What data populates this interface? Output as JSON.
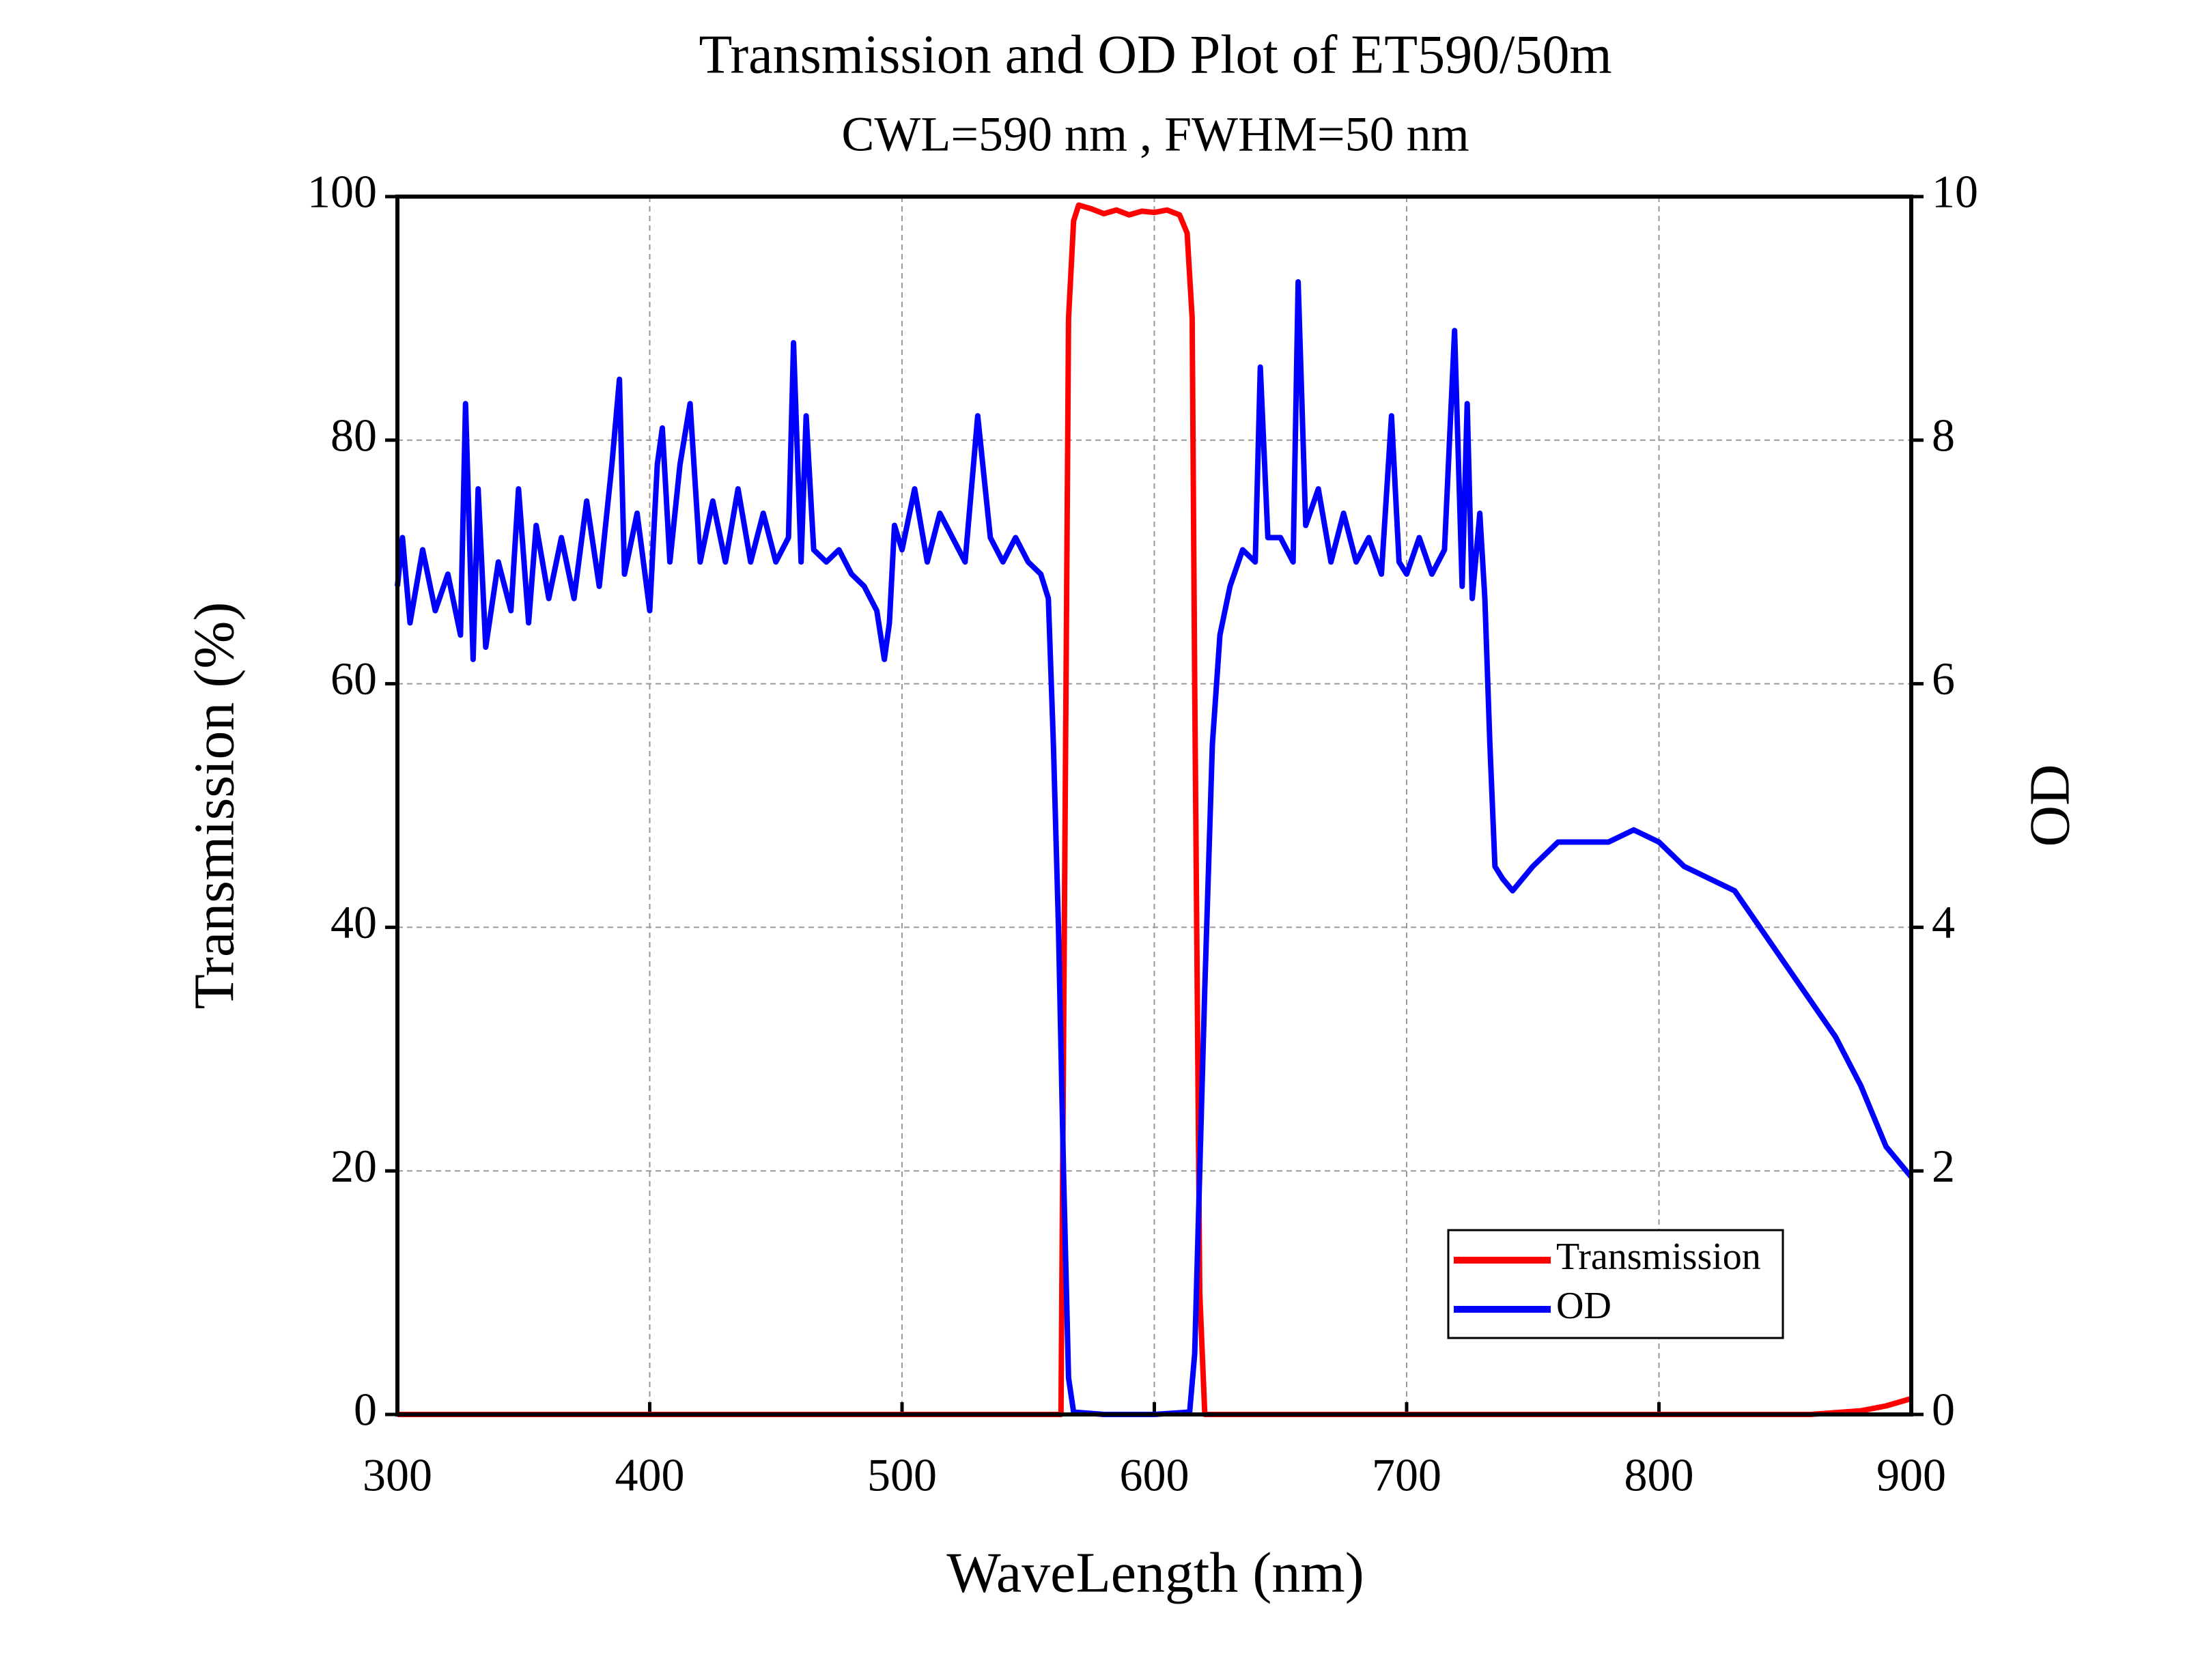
{
  "chart_data": {
    "type": "line",
    "title": "Transmission and OD Plot of ET590/50m",
    "subtitle": "CWL=590 nm , FWHM=50 nm",
    "x_label": "WaveLength (nm)",
    "y_label": "Transmission (%)",
    "y2_label": "OD",
    "xlim": [
      300,
      900
    ],
    "xticks": [
      300,
      400,
      500,
      600,
      700,
      800,
      900
    ],
    "ylim": [
      0,
      100
    ],
    "yticks": [
      0,
      20,
      40,
      60,
      80,
      100
    ],
    "y2lim": [
      0,
      10
    ],
    "y2ticks": [
      0,
      2,
      4,
      6,
      8,
      10
    ],
    "grid": true,
    "legend": "bottom-right",
    "series": [
      {
        "name": "Transmission",
        "color": "#ff0000",
        "x": [
          300,
          400,
          500,
          560,
          563,
          566,
          568,
          570,
          575,
          580,
          585,
          590,
          595,
          600,
          605,
          610,
          613,
          615,
          616,
          618,
          620,
          700,
          800,
          860,
          880,
          890,
          900
        ],
        "values": [
          0,
          0,
          0,
          0,
          0,
          90,
          98,
          99.3,
          99,
          98.6,
          98.9,
          98.5,
          98.8,
          98.7,
          98.9,
          98.5,
          97,
          90,
          60,
          10,
          0,
          0,
          0,
          0,
          0.3,
          0.7,
          1.3
        ]
      },
      {
        "name": "OD",
        "color": "#0000ff",
        "axis": "y2",
        "x": [
          300,
          302,
          305,
          310,
          315,
          320,
          325,
          327,
          330,
          332,
          335,
          340,
          345,
          348,
          352,
          355,
          360,
          365,
          370,
          375,
          380,
          385,
          388,
          390,
          395,
          400,
          403,
          405,
          408,
          412,
          416,
          420,
          425,
          430,
          435,
          440,
          445,
          450,
          455,
          457,
          460,
          462,
          465,
          470,
          475,
          480,
          485,
          490,
          493,
          495,
          497,
          500,
          505,
          510,
          515,
          520,
          525,
          530,
          535,
          540,
          545,
          550,
          555,
          558,
          560,
          562,
          564,
          566,
          568,
          580,
          600,
          614,
          616,
          618,
          620,
          623,
          626,
          630,
          635,
          640,
          642,
          645,
          650,
          655,
          657,
          660,
          665,
          670,
          675,
          680,
          685,
          690,
          694,
          697,
          700,
          705,
          710,
          715,
          719,
          722,
          724,
          726,
          729,
          731,
          733,
          735,
          738,
          742,
          750,
          760,
          770,
          780,
          790,
          800,
          810,
          820,
          830,
          840,
          850,
          860,
          870,
          880,
          890,
          900
        ],
        "values": [
          6.8,
          7.2,
          6.5,
          7.1,
          6.6,
          6.9,
          6.4,
          8.3,
          6.2,
          7.6,
          6.3,
          7.0,
          6.6,
          7.6,
          6.5,
          7.3,
          6.7,
          7.2,
          6.7,
          7.5,
          6.8,
          7.8,
          8.5,
          6.9,
          7.4,
          6.6,
          7.8,
          8.1,
          7.0,
          7.8,
          8.3,
          7.0,
          7.5,
          7.0,
          7.6,
          7.0,
          7.4,
          7.0,
          7.2,
          8.8,
          7.0,
          8.2,
          7.1,
          7.0,
          7.1,
          6.9,
          6.8,
          6.6,
          6.2,
          6.5,
          7.3,
          7.1,
          7.6,
          7.0,
          7.4,
          7.2,
          7.0,
          8.2,
          7.2,
          7.0,
          7.2,
          7.0,
          6.9,
          6.7,
          5.5,
          4.0,
          2.0,
          0.3,
          0.02,
          0,
          0,
          0.02,
          0.5,
          2.0,
          3.5,
          5.5,
          6.4,
          6.8,
          7.1,
          7.0,
          8.6,
          7.2,
          7.2,
          7.0,
          9.3,
          7.3,
          7.6,
          7.0,
          7.4,
          7.0,
          7.2,
          6.9,
          8.2,
          7.0,
          6.9,
          7.2,
          6.9,
          7.1,
          8.9,
          6.8,
          8.3,
          6.7,
          7.4,
          6.7,
          5.5,
          4.5,
          4.4,
          4.3,
          4.5,
          4.7,
          4.7,
          4.7,
          4.8,
          4.7,
          4.5,
          4.4,
          4.3,
          4.0,
          3.7,
          3.4,
          3.1,
          2.7,
          2.2,
          1.95
        ]
      }
    ]
  }
}
